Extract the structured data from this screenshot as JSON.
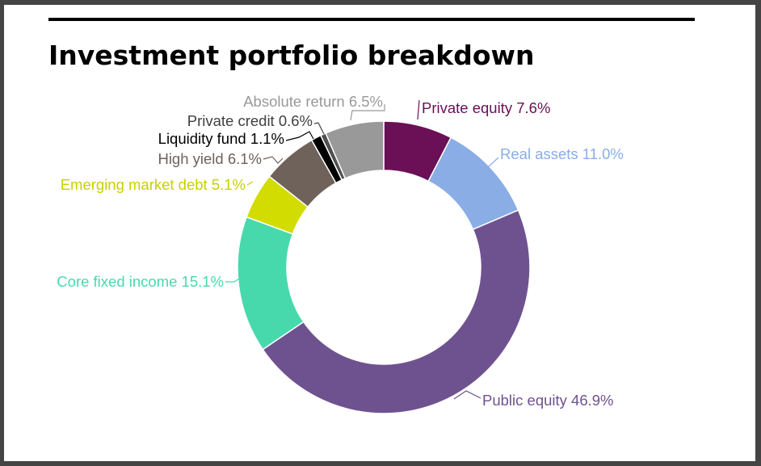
{
  "chart_data": {
    "type": "pie",
    "subtype": "donut",
    "title": "Investment portfolio breakdown",
    "start": "top, clockwise",
    "slices": [
      {
        "label": "Private equity 7.6%",
        "value": 7.6,
        "color": "#6b0f57"
      },
      {
        "label": "Real assets 11.0%",
        "value": 11.0,
        "color": "#8aade6"
      },
      {
        "label": "Public equity 46.9%",
        "value": 46.9,
        "color": "#6e528f"
      },
      {
        "label": "Core fixed income 15.1%",
        "value": 15.1,
        "color": "#47d9ac"
      },
      {
        "label": "Emerging market debt 5.1%",
        "value": 5.1,
        "color": "#d2dc00"
      },
      {
        "label": "High yield 6.1%",
        "value": 6.1,
        "color": "#6f625a"
      },
      {
        "label": "Liquidity fund 1.1%",
        "value": 1.1,
        "color": "#000000"
      },
      {
        "label": "Private credit 0.6%",
        "value": 0.6,
        "color": "#505050"
      },
      {
        "label": "Absolute return 6.5%",
        "value": 6.5,
        "color": "#999999"
      }
    ],
    "label_colors": [
      "#6b0f57",
      "#8aade6",
      "#6e528f",
      "#47d9ac",
      "#c8d000",
      "#6f625a",
      "#000000",
      "#404040",
      "#999999"
    ]
  }
}
